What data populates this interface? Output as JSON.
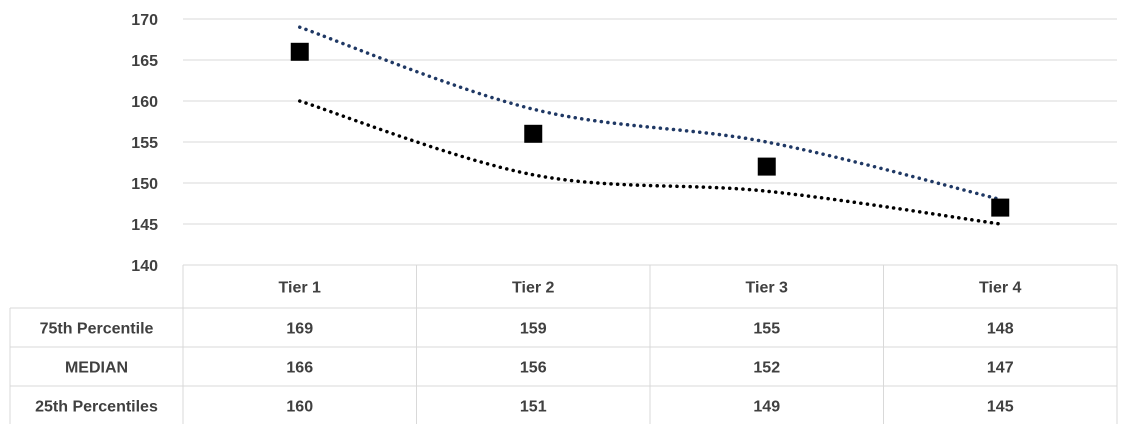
{
  "chart_data": {
    "type": "line",
    "categories": [
      "Tier 1",
      "Tier 2",
      "Tier 3",
      "Tier 4"
    ],
    "ylim": [
      140,
      170
    ],
    "y_ticks": [
      140,
      145,
      150,
      155,
      160,
      165,
      170
    ],
    "grid": true,
    "series": [
      {
        "name": "75th Percentile",
        "values": [
          169,
          159,
          155,
          148
        ],
        "style": "dotted-line",
        "color": "#1f3864"
      },
      {
        "name": "MEDIAN",
        "values": [
          166,
          156,
          152,
          147
        ],
        "style": "square-marker",
        "color": "#000000"
      },
      {
        "name": "25th Percentiles",
        "values": [
          160,
          151,
          149,
          145
        ],
        "style": "dotted-line",
        "color": "#000000"
      }
    ],
    "table": {
      "rows": [
        {
          "label": "75th Percentile",
          "values": [
            "169",
            "159",
            "155",
            "148"
          ]
        },
        {
          "label": "MEDIAN",
          "values": [
            "166",
            "156",
            "152",
            "147"
          ]
        },
        {
          "label": "25th Percentiles",
          "values": [
            "160",
            "151",
            "149",
            "145"
          ]
        }
      ]
    }
  }
}
